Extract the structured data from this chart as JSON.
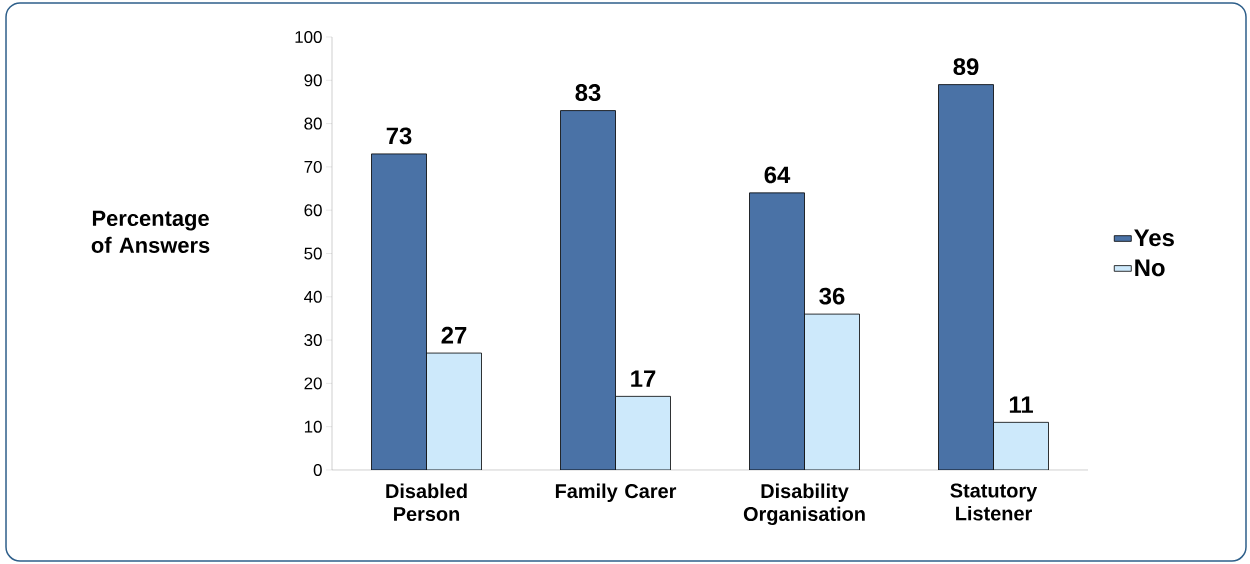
{
  "chart_data": {
    "type": "bar",
    "ylabel": "Percentage of Answers",
    "categories": [
      "Disabled Person",
      "Family Carer",
      "Disability Organisation",
      "Statutory Listener"
    ],
    "series": [
      {
        "name": "Yes",
        "color": "#4a72a6",
        "values": [
          73,
          83,
          64,
          89
        ]
      },
      {
        "name": "No",
        "color": "#cde9fb",
        "values": [
          27,
          17,
          36,
          11
        ]
      }
    ],
    "ylim": [
      0,
      100
    ],
    "yticks": [
      0,
      10,
      20,
      30,
      40,
      50,
      60,
      70,
      80,
      90,
      100
    ],
    "data_labels": true,
    "legend": "right",
    "grid": false
  }
}
